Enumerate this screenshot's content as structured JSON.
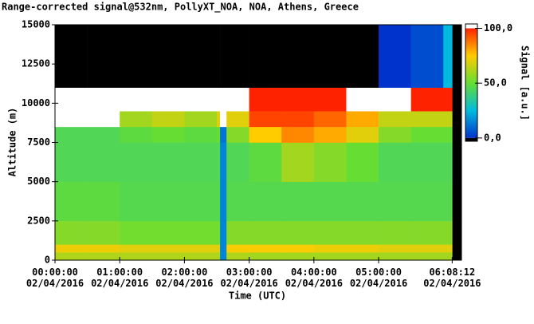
{
  "chart_data": {
    "type": "heatmap",
    "title": "Range-corrected signal@532nm, PollyXT_NOA, NOA, Athens, Greece",
    "xlabel": "Time (UTC)",
    "ylabel": "Altitude (m)",
    "colorbar_label": "Signal [a.u.]",
    "x_edges": [
      0,
      0.5,
      1,
      1.5,
      2,
      2.5,
      2.55,
      2.65,
      3,
      3.5,
      4,
      4.5,
      5,
      5.5,
      6,
      6.14,
      6.28
    ],
    "y_edges": [
      0,
      500,
      1000,
      2500,
      5000,
      7500,
      8500,
      9500,
      11000,
      15000
    ],
    "values": [
      [
        62,
        62,
        62,
        62,
        62,
        62,
        15,
        62,
        60,
        60,
        60,
        60,
        60,
        60,
        60,
        -5
      ],
      [
        72,
        72,
        70,
        70,
        70,
        70,
        15,
        74,
        74,
        74,
        72,
        72,
        70,
        70,
        70,
        -5
      ],
      [
        55,
        55,
        52,
        52,
        52,
        52,
        15,
        55,
        55,
        55,
        55,
        55,
        55,
        55,
        55,
        -5
      ],
      [
        48,
        48,
        46,
        46,
        46,
        46,
        15,
        46,
        46,
        46,
        46,
        46,
        46,
        46,
        46,
        -5
      ],
      [
        45,
        45,
        45,
        45,
        45,
        45,
        15,
        45,
        48,
        60,
        55,
        50,
        45,
        45,
        45,
        -5
      ],
      [
        45,
        45,
        48,
        50,
        48,
        50,
        12,
        55,
        75,
        85,
        80,
        70,
        55,
        50,
        50,
        -5
      ],
      [
        110,
        110,
        60,
        65,
        60,
        70,
        110,
        70,
        95,
        95,
        90,
        80,
        65,
        65,
        65,
        -5
      ],
      [
        110,
        110,
        110,
        105,
        105,
        110,
        110,
        105,
        100,
        100,
        100,
        105,
        105,
        100,
        100,
        -5
      ],
      [
        -5,
        -5,
        -5,
        -5,
        -5,
        -5,
        -5,
        -5,
        -5,
        -5,
        -5,
        -5,
        0,
        5,
        25,
        -5
      ]
    ],
    "xlim": [
      0,
      6.28
    ],
    "ylim": [
      0,
      15000
    ],
    "xticks": [
      {
        "value": 0,
        "label": "00:00:00\n02/04/2016"
      },
      {
        "value": 1,
        "label": "01:00:00\n02/04/2016"
      },
      {
        "value": 2,
        "label": "02:00:00\n02/04/2016"
      },
      {
        "value": 3,
        "label": "03:00:00\n02/04/2016"
      },
      {
        "value": 4,
        "label": "04:00:00\n02/04/2016"
      },
      {
        "value": 5,
        "label": "05:00:00\n02/04/2016"
      },
      {
        "value": 6.1367,
        "label": "06:08:12\n02/04/2016"
      }
    ],
    "yticks": [
      0,
      2500,
      5000,
      7500,
      10000,
      12500,
      15000
    ],
    "clim": [
      -3,
      104
    ],
    "cmap_lim": [
      0,
      100
    ],
    "colormap": [
      "#0033cc",
      "#00bbdd",
      "#66dd33",
      "#ffcc00",
      "#ff2200"
    ],
    "over_color": "#ffffff",
    "under_color": "#000000",
    "cticks": [
      {
        "value": 0,
        "label": "0,0"
      },
      {
        "value": 50,
        "label": "50,0"
      },
      {
        "value": 100,
        "label": "100,0"
      }
    ]
  }
}
